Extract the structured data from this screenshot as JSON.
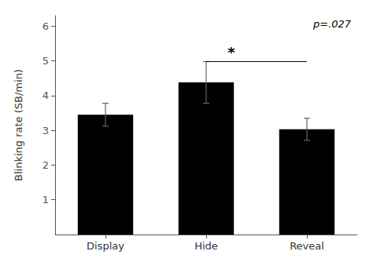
{
  "chart_data": {
    "type": "bar",
    "categories": [
      "Display",
      "Hide",
      "Reveal"
    ],
    "values": [
      3.45,
      4.38,
      3.03
    ],
    "errors": [
      0.33,
      0.6,
      0.32
    ],
    "color": "#000000",
    "ylabel": "Blinking rate (SB/min)",
    "ylim": [
      0,
      6.3
    ],
    "yticks": [
      1,
      2,
      3,
      4,
      5,
      6
    ],
    "grid": false,
    "significance": {
      "from": "Hide",
      "to": "Reveal",
      "y": 4.98,
      "text": "*",
      "text_y": 5.05
    },
    "annotations": [
      {
        "text": "p=.027"
      }
    ]
  }
}
